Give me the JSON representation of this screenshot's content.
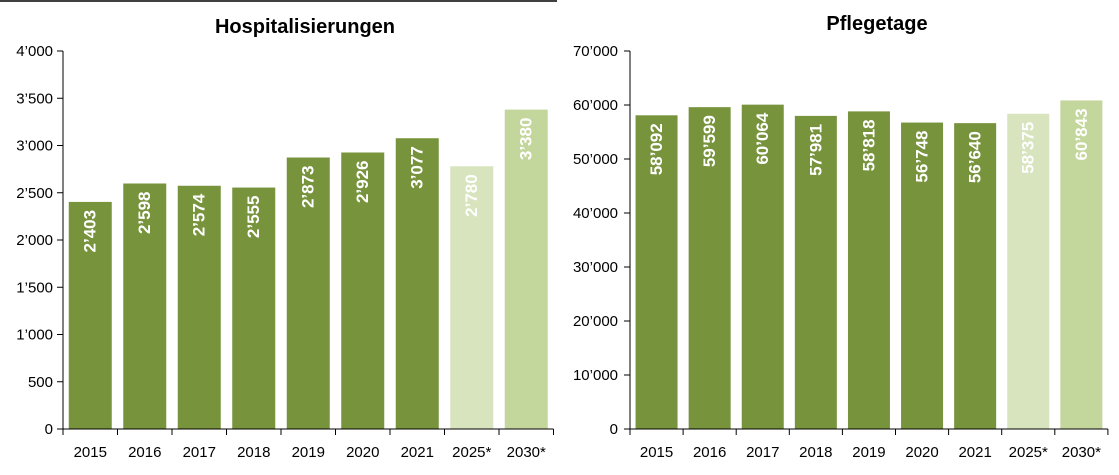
{
  "chart_data": [
    {
      "type": "bar",
      "title": "Hospitalisierungen",
      "categories": [
        "2015",
        "2016",
        "2017",
        "2018",
        "2019",
        "2020",
        "2021",
        "2025*",
        "2030*"
      ],
      "values": [
        2403,
        2598,
        2574,
        2555,
        2873,
        2926,
        3077,
        2780,
        3380
      ],
      "value_labels": [
        "2’403",
        "2’598",
        "2’574",
        "2’555",
        "2’873",
        "2’926",
        "3’077",
        "2’780",
        "3’380"
      ],
      "yticks": [
        0,
        500,
        1000,
        1500,
        2000,
        2500,
        3000,
        3500,
        4000
      ],
      "ytick_labels": [
        "0",
        "500",
        "1’000",
        "1’500",
        "2’000",
        "2’500",
        "3’000",
        "3’500",
        "4’000"
      ],
      "ylim": [
        0,
        4000
      ],
      "xlabel": "",
      "ylabel": "",
      "grid": false,
      "colors": {
        "actual": "#77933c",
        "projection_2025": "#d7e4bd",
        "projection_2030": "#c3d69b"
      }
    },
    {
      "type": "bar",
      "title": "Pflegetage",
      "categories": [
        "2015",
        "2016",
        "2017",
        "2018",
        "2019",
        "2020",
        "2021",
        "2025*",
        "2030*"
      ],
      "values": [
        58092,
        59599,
        60064,
        57981,
        58818,
        56748,
        56640,
        58375,
        60843
      ],
      "value_labels": [
        "58’092",
        "59’599",
        "60’064",
        "57’981",
        "58’818",
        "56’748",
        "56’640",
        "58’375",
        "60’843"
      ],
      "yticks": [
        0,
        10000,
        20000,
        30000,
        40000,
        50000,
        60000,
        70000
      ],
      "ytick_labels": [
        "0",
        "10’000",
        "20’000",
        "30’000",
        "40’000",
        "50’000",
        "60’000",
        "70’000"
      ],
      "ylim": [
        0,
        70000
      ],
      "xlabel": "",
      "ylabel": "",
      "grid": false,
      "colors": {
        "actual": "#77933c",
        "projection_2025": "#d7e4bd",
        "projection_2030": "#c3d69b"
      }
    }
  ]
}
